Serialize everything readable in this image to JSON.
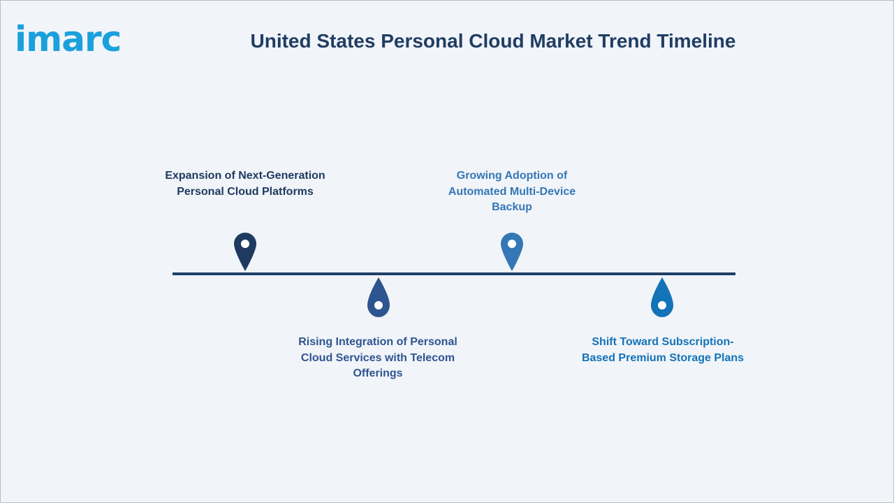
{
  "header": {
    "logo_text": "imarc",
    "title": "United States Personal Cloud Market Trend Timeline"
  },
  "colors": {
    "logo": "#1aa0dc",
    "title": "#213d63",
    "timeline_line": "#1f3f66"
  },
  "timeline": {
    "events": [
      {
        "label": "Expansion of Next-Generation Personal Cloud Platforms",
        "color": "#1f3a60",
        "pin_icon": "map-pin-icon"
      },
      {
        "label": "Rising Integration of Personal Cloud Services with Telecom Offerings",
        "color": "#2e5590",
        "pin_icon": "droplet-pin-icon"
      },
      {
        "label": "Growing Adoption of Automated Multi-Device Backup",
        "color": "#3477b5",
        "pin_icon": "map-pin-icon"
      },
      {
        "label": "Shift Toward Subscription-Based Premium Storage Plans",
        "color": "#1373b7",
        "pin_icon": "droplet-pin-icon"
      }
    ]
  }
}
